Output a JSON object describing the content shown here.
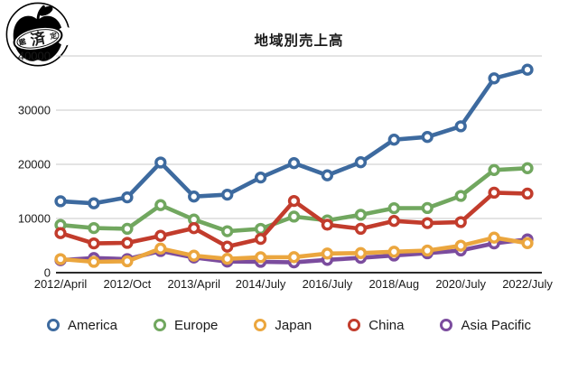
{
  "logo": {
    "stamp_left": "鑑",
    "stamp_center": "済",
    "stamp_right": "定"
  },
  "title": "地域別売上高",
  "chart_data": {
    "type": "line",
    "title": "地域別売上高",
    "ylim": [
      0,
      40000
    ],
    "y_ticks": [
      0,
      10000,
      20000,
      30000,
      40000
    ],
    "x_tick_labels": [
      "2012/April",
      "2012/Oct",
      "2013/April",
      "2014/July",
      "2016/July",
      "2018/Aug",
      "2020/July",
      "2022/July"
    ],
    "x_tick_indices": [
      0,
      2,
      4,
      6,
      8,
      10,
      12,
      14
    ],
    "n_points": 15,
    "grid": true,
    "legend_position": "bottom",
    "series": [
      {
        "name": "America",
        "color": "#3D6A9F",
        "values": [
          13182,
          12806,
          13900,
          20341,
          14052,
          14405,
          17574,
          20209,
          17963,
          20376,
          24542,
          25056,
          27018,
          35870,
          37472
        ]
      },
      {
        "name": "Europe",
        "color": "#71A75F",
        "values": [
          8807,
          8235,
          8100,
          12464,
          9800,
          7655,
          8091,
          10342,
          9643,
          10675,
          11900,
          11925,
          14173,
          18943,
          19287
        ]
      },
      {
        "name": "Japan",
        "color": "#EBA63E",
        "values": [
          2500,
          2000,
          2100,
          4443,
          3135,
          2543,
          2856,
          2872,
          3529,
          3624,
          3867,
          4082,
          4966,
          6464,
          5446
        ]
      },
      {
        "name": "China",
        "color": "#C23C2C",
        "values": [
          7300,
          5400,
          5500,
          6800,
          8213,
          4800,
          6230,
          13230,
          8848,
          8100,
          9551,
          9157,
          9329,
          14762,
          14604
        ]
      },
      {
        "name": "Asia Pacific",
        "color": "#7B4C9E",
        "values": [
          2300,
          2700,
          2500,
          3993,
          2800,
          2045,
          2000,
          1900,
          2375,
          2729,
          3167,
          3589,
          4100,
          5395,
          6150
        ]
      }
    ]
  }
}
